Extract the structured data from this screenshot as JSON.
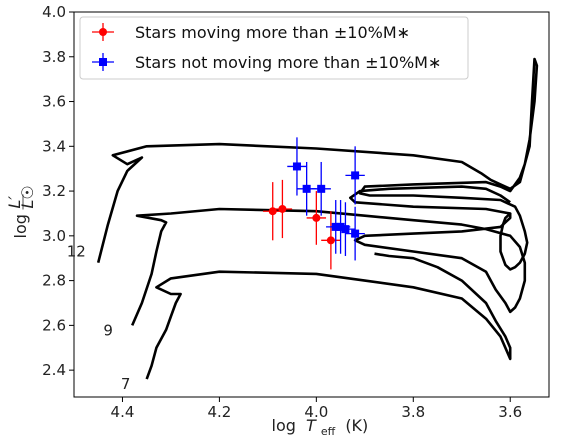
{
  "chart_data": {
    "type": "scatter",
    "title": "",
    "xlabel_prefix": "log",
    "xlabel_symbol": "T",
    "xlabel_sub": "eff",
    "xlabel_unit": "(K)",
    "ylabel_prefix": "log",
    "ylabel_num": "L′",
    "ylabel_den": "L☉",
    "xlim": [
      4.5,
      3.52
    ],
    "ylim": [
      2.28,
      4.0
    ],
    "x_inverted": true,
    "x_ticks": [
      "4.4",
      "4.2",
      "4.0",
      "3.8",
      "3.6"
    ],
    "x_tick_values": [
      4.4,
      4.2,
      4.0,
      3.8,
      3.6
    ],
    "y_ticks": [
      "2.4",
      "2.6",
      "2.8",
      "3.0",
      "3.2",
      "3.4",
      "3.6",
      "3.8",
      "4.0"
    ],
    "y_tick_values": [
      2.4,
      2.6,
      2.8,
      3.0,
      3.2,
      3.4,
      3.6,
      3.8,
      4.0
    ],
    "grid": false,
    "legend_position": "top-left",
    "colors": {
      "moving": "#ff0000",
      "not_moving": "#0000ff",
      "track": "#000000"
    },
    "series": [
      {
        "name": "Stars moving more than ±10%M∗",
        "marker": "circle",
        "color": "#ff0000",
        "points": [
          {
            "x": 4.09,
            "y": 3.11,
            "xerr": 0.02,
            "yerr": 0.13
          },
          {
            "x": 4.07,
            "y": 3.12,
            "xerr": 0.02,
            "yerr": 0.13
          },
          {
            "x": 4.0,
            "y": 3.08,
            "xerr": 0.02,
            "yerr": 0.12
          },
          {
            "x": 3.97,
            "y": 2.98,
            "xerr": 0.02,
            "yerr": 0.13
          }
        ]
      },
      {
        "name": "Stars not moving more than ±10%M∗",
        "marker": "square",
        "color": "#0000ff",
        "points": [
          {
            "x": 4.04,
            "y": 3.31,
            "xerr": 0.02,
            "yerr": 0.13
          },
          {
            "x": 4.02,
            "y": 3.21,
            "xerr": 0.02,
            "yerr": 0.12
          },
          {
            "x": 3.99,
            "y": 3.21,
            "xerr": 0.02,
            "yerr": 0.12
          },
          {
            "x": 3.96,
            "y": 3.04,
            "xerr": 0.02,
            "yerr": 0.12
          },
          {
            "x": 3.95,
            "y": 3.04,
            "xerr": 0.02,
            "yerr": 0.12
          },
          {
            "x": 3.94,
            "y": 3.03,
            "xerr": 0.02,
            "yerr": 0.12
          },
          {
            "x": 3.92,
            "y": 3.27,
            "xerr": 0.02,
            "yerr": 0.13
          },
          {
            "x": 3.92,
            "y": 3.01,
            "xerr": 0.02,
            "yerr": 0.12
          }
        ]
      }
    ],
    "tracks": [
      {
        "label": "12",
        "points": [
          [
            4.45,
            2.88
          ],
          [
            4.43,
            3.05
          ],
          [
            4.41,
            3.2
          ],
          [
            4.39,
            3.29
          ],
          [
            4.37,
            3.33
          ],
          [
            4.36,
            3.35
          ],
          [
            4.39,
            3.32
          ],
          [
            4.42,
            3.36
          ],
          [
            4.35,
            3.4
          ],
          [
            4.2,
            3.41
          ],
          [
            4.0,
            3.39
          ],
          [
            3.8,
            3.36
          ],
          [
            3.7,
            3.33
          ],
          [
            3.66,
            3.28
          ],
          [
            3.64,
            3.25
          ],
          [
            3.62,
            3.23
          ],
          [
            3.6,
            3.21
          ],
          [
            3.58,
            3.24
          ],
          [
            3.56,
            3.4
          ],
          [
            3.555,
            3.6
          ],
          [
            3.55,
            3.79
          ],
          [
            3.545,
            3.76
          ],
          [
            3.55,
            3.6
          ],
          [
            3.56,
            3.43
          ],
          [
            3.57,
            3.32
          ],
          [
            3.58,
            3.26
          ],
          [
            3.6,
            3.2
          ],
          [
            3.62,
            3.22
          ],
          [
            3.65,
            3.24
          ],
          [
            3.8,
            3.23
          ],
          [
            3.9,
            3.22
          ],
          [
            3.91,
            3.19
          ],
          [
            3.89,
            3.18
          ],
          [
            3.8,
            3.18
          ],
          [
            3.7,
            3.17
          ],
          [
            3.62,
            3.16
          ],
          [
            3.59,
            3.13
          ],
          [
            3.58,
            3.09
          ],
          [
            3.57,
            3.02
          ],
          [
            3.565,
            2.97
          ],
          [
            3.57,
            2.92
          ],
          [
            3.58,
            2.88
          ],
          [
            3.59,
            2.86
          ],
          [
            3.6,
            2.85
          ],
          [
            3.61,
            2.87
          ],
          [
            3.62,
            2.93
          ],
          [
            3.62,
            3.0
          ],
          [
            3.615,
            3.05
          ],
          [
            3.61,
            3.08
          ],
          [
            3.6,
            3.1
          ],
          [
            3.65,
            3.12
          ],
          [
            3.8,
            3.13
          ],
          [
            3.92,
            3.15
          ],
          [
            3.93,
            3.17
          ],
          [
            3.91,
            3.2
          ],
          [
            3.85,
            3.21
          ],
          [
            3.7,
            3.22
          ],
          [
            3.65,
            3.21
          ],
          [
            3.62,
            3.18
          ],
          [
            3.6,
            3.15
          ]
        ]
      },
      {
        "label": "9",
        "points": [
          [
            4.38,
            2.6
          ],
          [
            4.36,
            2.7
          ],
          [
            4.34,
            2.83
          ],
          [
            4.33,
            2.93
          ],
          [
            4.32,
            3.02
          ],
          [
            4.31,
            3.06
          ],
          [
            4.32,
            3.07
          ],
          [
            4.37,
            3.09
          ],
          [
            4.3,
            3.1
          ],
          [
            4.2,
            3.12
          ],
          [
            4.0,
            3.11
          ],
          [
            3.9,
            3.09
          ],
          [
            3.8,
            3.07
          ],
          [
            3.7,
            3.05
          ],
          [
            3.65,
            3.03
          ],
          [
            3.6,
            3.0
          ],
          [
            3.58,
            2.95
          ],
          [
            3.57,
            2.88
          ],
          [
            3.57,
            2.8
          ],
          [
            3.58,
            2.72
          ],
          [
            3.59,
            2.68
          ],
          [
            3.6,
            2.66
          ],
          [
            3.61,
            2.7
          ],
          [
            3.63,
            2.76
          ],
          [
            3.64,
            2.8
          ],
          [
            3.65,
            2.84
          ],
          [
            3.7,
            2.9
          ],
          [
            3.8,
            2.93
          ],
          [
            3.9,
            2.96
          ],
          [
            3.92,
            2.98
          ],
          [
            3.9,
            3.0
          ],
          [
            3.8,
            3.01
          ],
          [
            3.7,
            3.02
          ],
          [
            3.62,
            3.04
          ],
          [
            3.6,
            3.08
          ],
          [
            3.6,
            3.1
          ]
        ]
      },
      {
        "label": "7",
        "points": [
          [
            4.35,
            2.36
          ],
          [
            4.34,
            2.42
          ],
          [
            4.33,
            2.5
          ],
          [
            4.31,
            2.58
          ],
          [
            4.3,
            2.64
          ],
          [
            4.29,
            2.7
          ],
          [
            4.28,
            2.74
          ],
          [
            4.3,
            2.74
          ],
          [
            4.33,
            2.77
          ],
          [
            4.3,
            2.81
          ],
          [
            4.2,
            2.84
          ],
          [
            4.0,
            2.83
          ],
          [
            3.9,
            2.8
          ],
          [
            3.8,
            2.77
          ],
          [
            3.7,
            2.72
          ],
          [
            3.65,
            2.63
          ],
          [
            3.62,
            2.55
          ],
          [
            3.61,
            2.5
          ],
          [
            3.6,
            2.45
          ],
          [
            3.6,
            2.5
          ],
          [
            3.61,
            2.55
          ],
          [
            3.63,
            2.62
          ],
          [
            3.65,
            2.7
          ],
          [
            3.7,
            2.8
          ],
          [
            3.75,
            2.86
          ],
          [
            3.8,
            2.9
          ],
          [
            3.85,
            2.91
          ],
          [
            3.88,
            2.92
          ]
        ]
      }
    ]
  }
}
